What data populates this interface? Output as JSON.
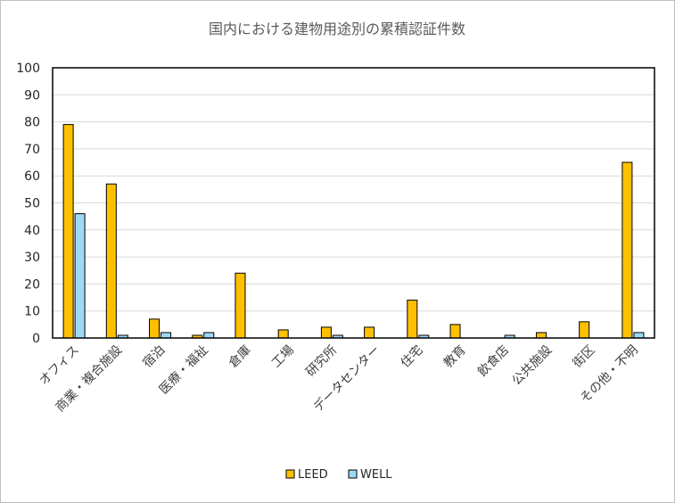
{
  "chart_data": {
    "type": "bar",
    "title": "国内における建物用途別の累積認証件数",
    "xlabel": "",
    "ylabel": "",
    "ylim": [
      0,
      100
    ],
    "yticks": [
      0,
      10,
      20,
      30,
      40,
      50,
      60,
      70,
      80,
      90,
      100
    ],
    "grid": true,
    "legend_position": "bottom",
    "categories": [
      "オフィス",
      "商業・複合施設",
      "宿泊",
      "医療・福祉",
      "倉庫",
      "工場",
      "研究所",
      "データセンター",
      "住宅",
      "教育",
      "飲食店",
      "公共施設",
      "街区",
      "その他・不明"
    ],
    "series": [
      {
        "name": "LEED",
        "color": "#ffc000",
        "values": [
          79,
          57,
          7,
          1,
          24,
          3,
          4,
          4,
          14,
          5,
          0,
          2,
          6,
          65
        ]
      },
      {
        "name": "WELL",
        "color": "#9dd9f3",
        "values": [
          46,
          1,
          2,
          2,
          0,
          0,
          1,
          0,
          1,
          0,
          1,
          0,
          0,
          2
        ]
      }
    ]
  }
}
